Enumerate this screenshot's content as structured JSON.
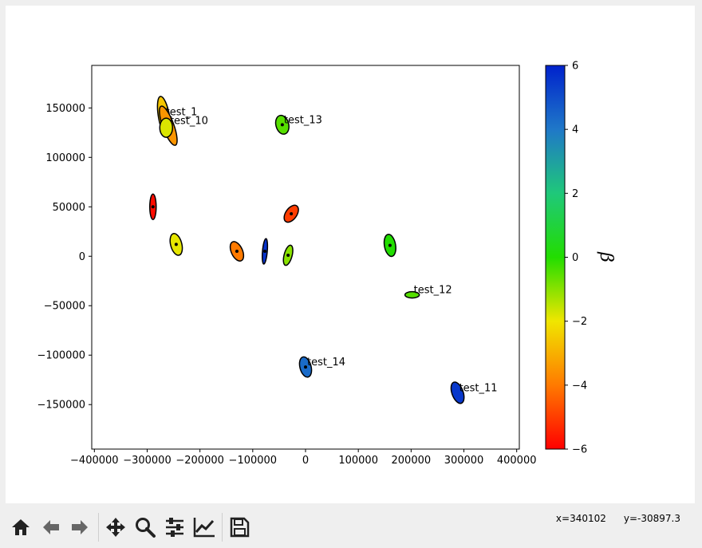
{
  "chart_data": {
    "type": "scatter",
    "xlim": [
      -405000,
      405000
    ],
    "ylim": [
      -195000,
      193000
    ],
    "xticks": [
      -400000,
      -300000,
      -200000,
      -100000,
      0,
      100000,
      200000,
      300000,
      400000
    ],
    "xtick_labels": [
      "−400000",
      "−300000",
      "−200000",
      "−100000",
      "0",
      "100000",
      "200000",
      "300000",
      "400000"
    ],
    "yticks": [
      -150000,
      -100000,
      -50000,
      0,
      50000,
      100000,
      150000
    ],
    "ytick_labels": [
      "−150000",
      "−100000",
      "−50000",
      "0",
      "50000",
      "100000",
      "150000"
    ],
    "grid": false,
    "colorbar": {
      "label": "β",
      "range": [
        -6,
        6
      ],
      "ticks": [
        6,
        4,
        2,
        0,
        -2,
        -4,
        -6
      ],
      "tick_labels": [
        "6",
        "4",
        "2",
        "0",
        "−2",
        "−4",
        "−6"
      ],
      "colormap": [
        "#ff0000",
        "#ff7a00",
        "#f0e600",
        "#22dd00",
        "#1fc87a",
        "#1f78c8",
        "#0022cc"
      ]
    },
    "points": [
      {
        "label": "test_1",
        "x": -268000,
        "y": 141000,
        "beta": -2.6,
        "rx": 7,
        "ry": 26,
        "angle": -10,
        "dot": false
      },
      {
        "label": "test_10",
        "x": -260000,
        "y": 132000,
        "beta": -3.5,
        "rx": 7,
        "ry": 26,
        "angle": -20,
        "dot": false
      },
      {
        "label": "",
        "x": -264000,
        "y": 130000,
        "beta": -1.8,
        "rx": 8,
        "ry": 12,
        "angle": 0,
        "dot": false
      },
      {
        "label": "test_13",
        "x": -44000,
        "y": 133000,
        "beta": -0.5,
        "rx": 8,
        "ry": 12,
        "angle": -15,
        "dot": true
      },
      {
        "label": "",
        "x": -289000,
        "y": 50000,
        "beta": -5.8,
        "rx": 4,
        "ry": 16,
        "angle": 0,
        "dot": true
      },
      {
        "label": "",
        "x": -27000,
        "y": 43000,
        "beta": -5.0,
        "rx": 7,
        "ry": 12,
        "angle": 35,
        "dot": true
      },
      {
        "label": "",
        "x": -245000,
        "y": 12000,
        "beta": -1.9,
        "rx": 7,
        "ry": 14,
        "angle": -15,
        "dot": true
      },
      {
        "label": "",
        "x": -130000,
        "y": 5000,
        "beta": -4.0,
        "rx": 7,
        "ry": 13,
        "angle": -25,
        "dot": true
      },
      {
        "label": "",
        "x": -77000,
        "y": 5000,
        "beta": 5.6,
        "rx": 3,
        "ry": 16,
        "angle": 5,
        "dot": true
      },
      {
        "label": "",
        "x": -33000,
        "y": 1000,
        "beta": -1.0,
        "rx": 5,
        "ry": 13,
        "angle": 15,
        "dot": true
      },
      {
        "label": "",
        "x": 160000,
        "y": 11000,
        "beta": 0.0,
        "rx": 7,
        "ry": 14,
        "angle": -10,
        "dot": true
      },
      {
        "label": "test_12",
        "x": 202000,
        "y": -39000,
        "beta": -0.5,
        "rx": 9,
        "ry": 4,
        "angle": 0,
        "dot": false
      },
      {
        "label": "test_14",
        "x": 0,
        "y": -112000,
        "beta": 4.3,
        "rx": 7,
        "ry": 13,
        "angle": -15,
        "dot": true
      },
      {
        "label": "test_11",
        "x": 288000,
        "y": -138000,
        "beta": 5.5,
        "rx": 7,
        "ry": 14,
        "angle": -20,
        "dot": false
      }
    ]
  },
  "toolbar": {
    "icons": [
      "home-icon",
      "back-arrow-icon",
      "forward-arrow-icon",
      "pan-icon",
      "zoom-icon",
      "configure-subplots-icon",
      "edit-axes-icon",
      "save-icon"
    ],
    "coords_x": "x=340102",
    "coords_y": "y=-30897.3"
  }
}
